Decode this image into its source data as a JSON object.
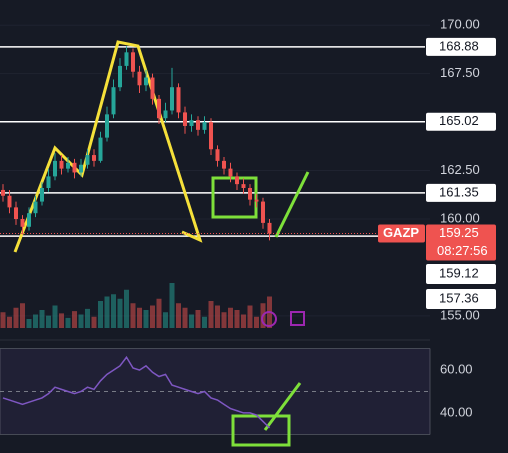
{
  "chart_data": [
    {
      "type": "candlestick",
      "symbol": "GAZP",
      "open": [
        161.5,
        161.2,
        160.6,
        160.0,
        159.6,
        160.3,
        160.9,
        161.6,
        162.2,
        163.0,
        162.6,
        162.9,
        162.4,
        162.8,
        163.3,
        163.0,
        164.2,
        165.4,
        166.8,
        167.9,
        168.6,
        167.6,
        166.9,
        167.3,
        166.2,
        165.2,
        165.6,
        166.8,
        165.5,
        164.8,
        165.1,
        164.6,
        165.0,
        163.6,
        163.0,
        162.6,
        162.2,
        161.8,
        161.6,
        161.0,
        160.9,
        159.8
      ],
      "high": [
        161.8,
        161.5,
        160.9,
        160.2,
        160.6,
        161.2,
        161.9,
        162.6,
        163.4,
        163.3,
        163.2,
        163.1,
        163.1,
        163.6,
        163.6,
        164.5,
        165.8,
        167.2,
        168.3,
        168.9,
        168.8,
        167.9,
        167.7,
        167.5,
        166.4,
        166.0,
        167.8,
        167.0,
        165.8,
        165.4,
        165.3,
        165.3,
        165.2,
        163.8,
        163.2,
        162.9,
        162.4,
        162.1,
        161.8,
        161.3,
        161.1,
        160.0
      ],
      "low": [
        160.9,
        160.3,
        159.7,
        159.2,
        159.4,
        160.1,
        160.7,
        161.4,
        162.0,
        162.3,
        162.4,
        162.1,
        162.2,
        162.6,
        162.7,
        162.9,
        164.0,
        165.2,
        166.6,
        167.7,
        167.3,
        166.5,
        166.6,
        165.9,
        164.9,
        165.0,
        165.4,
        165.2,
        164.4,
        164.5,
        164.3,
        164.4,
        163.3,
        162.7,
        162.3,
        161.9,
        161.5,
        161.3,
        160.7,
        160.6,
        159.5,
        158.9
      ],
      "close": [
        161.2,
        160.6,
        160.0,
        159.6,
        160.3,
        160.9,
        161.6,
        162.2,
        163.0,
        162.6,
        162.9,
        162.4,
        162.8,
        163.3,
        163.0,
        164.2,
        165.4,
        166.8,
        167.9,
        168.6,
        167.6,
        166.9,
        167.3,
        166.2,
        165.2,
        165.6,
        166.8,
        165.5,
        164.8,
        165.1,
        164.6,
        165.0,
        163.6,
        163.0,
        162.6,
        162.2,
        161.8,
        161.6,
        161.0,
        160.9,
        159.8,
        159.25
      ],
      "volume": [
        14,
        10,
        18,
        22,
        8,
        12,
        16,
        11,
        20,
        13,
        9,
        15,
        12,
        17,
        10,
        24,
        28,
        30,
        26,
        34,
        22,
        18,
        16,
        20,
        26,
        14,
        40,
        22,
        18,
        12,
        16,
        10,
        24,
        20,
        14,
        18,
        16,
        12,
        20,
        10,
        22,
        28
      ],
      "ylim": [
        153.5,
        171.3
      ],
      "yticks": [
        {
          "value": 170,
          "label": "170.00"
        },
        {
          "value": 167.5,
          "label": "167.50"
        },
        {
          "value": 162.5,
          "label": "162.50"
        },
        {
          "value": 160,
          "label": "160.00"
        },
        {
          "value": 155,
          "label": "155.00"
        }
      ],
      "price_lines": [
        168.88,
        165.02,
        161.35,
        159.12
      ],
      "last_price": 159.25,
      "countdown": "08:27:56",
      "extra_labels": [
        159.12,
        157.36
      ],
      "up_color": "#26a69a",
      "down_color": "#ef5350"
    },
    {
      "type": "line",
      "color": "#7e57c2",
      "values": [
        47,
        46,
        45,
        44,
        45,
        46,
        47,
        49,
        52,
        51,
        50,
        49,
        50,
        52,
        51,
        55,
        58,
        60,
        62,
        66,
        61,
        60,
        62,
        59,
        57,
        58,
        53,
        52,
        51,
        50,
        49,
        50,
        47,
        46,
        44,
        42,
        41,
        40,
        40,
        39,
        36,
        33
      ],
      "ylim": [
        25,
        75
      ],
      "band": [
        30,
        70
      ],
      "midline": 50,
      "yticks": [
        {
          "value": 60,
          "label": "60.00"
        },
        {
          "value": 40,
          "label": "40.00"
        }
      ]
    }
  ]
}
